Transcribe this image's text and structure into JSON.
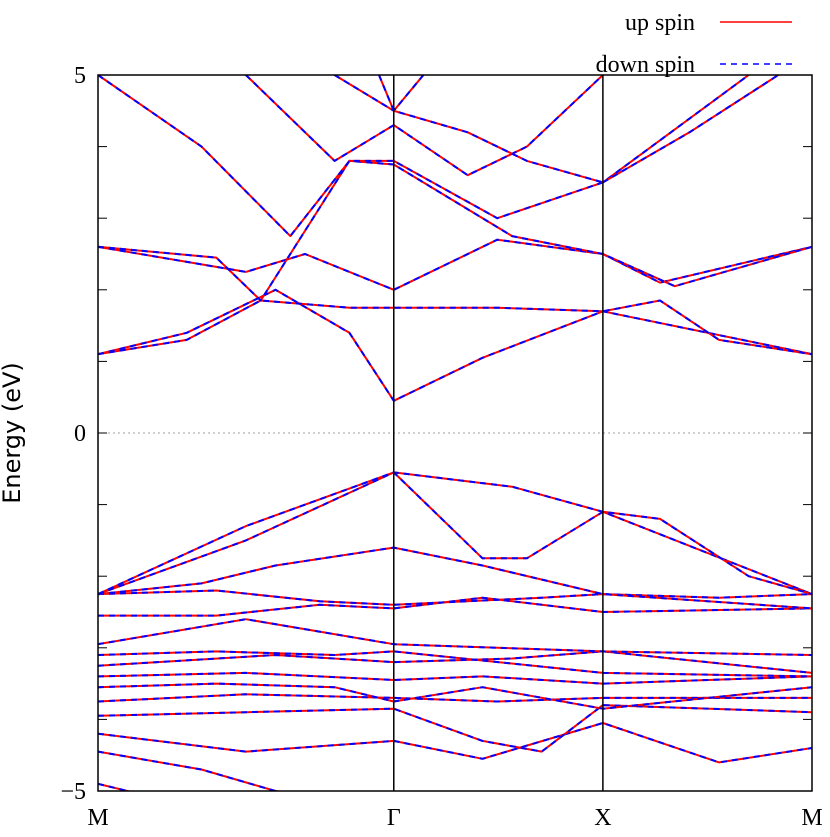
{
  "chart_data": {
    "type": "line",
    "ylabel": "Energy (eV)",
    "ylim": [
      -5,
      5
    ],
    "yticks": [
      {
        "value": -5,
        "label": "−5"
      },
      {
        "value": 0,
        "label": "0"
      },
      {
        "value": 5,
        "label": "5"
      }
    ],
    "kpoints": [
      {
        "label": "M",
        "k": 0
      },
      {
        "label": "Γ",
        "k": 1
      },
      {
        "label": "X",
        "k": 1.707
      },
      {
        "label": "M",
        "k": 2.414
      }
    ],
    "fermi_level": 0,
    "legend": {
      "position": "top-right",
      "entries": [
        {
          "name": "up spin",
          "color": "#ff0000",
          "style": "solid"
        },
        {
          "name": "down spin",
          "color": "#0000ff",
          "style": "dashed"
        }
      ]
    },
    "bands": [
      [
        [
          0.0,
          -4.9
        ],
        [
          0.2,
          -5.1
        ]
      ],
      [
        [
          0.0,
          -4.45
        ],
        [
          0.35,
          -4.7
        ],
        [
          0.6,
          -5.0
        ],
        [
          0.8,
          -5.1
        ]
      ],
      [
        [
          0.0,
          -4.2
        ],
        [
          0.5,
          -4.45
        ],
        [
          1.0,
          -4.3
        ],
        [
          1.3,
          -4.55
        ],
        [
          1.707,
          -4.05
        ],
        [
          2.1,
          -4.6
        ],
        [
          2.414,
          -4.4
        ]
      ],
      [
        [
          0.0,
          -3.95
        ],
        [
          0.5,
          -3.9
        ],
        [
          1.0,
          -3.85
        ],
        [
          1.3,
          -4.3
        ],
        [
          1.5,
          -4.45
        ],
        [
          1.707,
          -3.8
        ],
        [
          2.414,
          -3.9
        ]
      ],
      [
        [
          0.0,
          -3.75
        ],
        [
          0.5,
          -3.65
        ],
        [
          1.0,
          -3.7
        ],
        [
          1.35,
          -3.75
        ],
        [
          1.707,
          -3.7
        ],
        [
          2.414,
          -3.7
        ]
      ],
      [
        [
          0.0,
          -3.55
        ],
        [
          0.4,
          -3.5
        ],
        [
          0.8,
          -3.55
        ],
        [
          1.0,
          -3.75
        ],
        [
          1.3,
          -3.55
        ],
        [
          1.707,
          -3.85
        ],
        [
          2.414,
          -3.55
        ]
      ],
      [
        [
          0.0,
          -3.4
        ],
        [
          0.5,
          -3.35
        ],
        [
          1.0,
          -3.45
        ],
        [
          1.3,
          -3.4
        ],
        [
          1.707,
          -3.5
        ],
        [
          2.414,
          -3.4
        ]
      ],
      [
        [
          0.0,
          -3.25
        ],
        [
          0.6,
          -3.1
        ],
        [
          1.0,
          -3.2
        ],
        [
          1.4,
          -3.15
        ],
        [
          1.707,
          -3.05
        ],
        [
          2.414,
          -3.35
        ]
      ],
      [
        [
          0.0,
          -3.1
        ],
        [
          0.4,
          -3.05
        ],
        [
          0.8,
          -3.1
        ],
        [
          1.0,
          -3.05
        ],
        [
          1.707,
          -3.35
        ],
        [
          2.414,
          -3.4
        ]
      ],
      [
        [
          0.0,
          -2.95
        ],
        [
          0.5,
          -2.6
        ],
        [
          1.0,
          -2.95
        ],
        [
          1.707,
          -3.05
        ],
        [
          2.414,
          -3.1
        ]
      ],
      [
        [
          0.0,
          -2.55
        ],
        [
          0.4,
          -2.55
        ],
        [
          0.75,
          -2.4
        ],
        [
          1.0,
          -2.45
        ],
        [
          1.3,
          -2.3
        ],
        [
          1.707,
          -2.5
        ],
        [
          2.414,
          -2.45
        ]
      ],
      [
        [
          0.0,
          -2.25
        ],
        [
          0.4,
          -2.2
        ],
        [
          0.75,
          -2.35
        ],
        [
          1.0,
          -2.4
        ],
        [
          1.5,
          -2.3
        ],
        [
          1.707,
          -2.25
        ],
        [
          2.1,
          -2.3
        ],
        [
          2.414,
          -2.25
        ]
      ],
      [
        [
          0.0,
          -2.25
        ],
        [
          0.35,
          -2.1
        ],
        [
          0.6,
          -1.85
        ],
        [
          1.0,
          -1.6
        ],
        [
          1.3,
          -1.85
        ],
        [
          1.707,
          -2.25
        ],
        [
          2.414,
          -2.45
        ]
      ],
      [
        [
          0.0,
          -2.25
        ],
        [
          0.5,
          -1.5
        ],
        [
          1.0,
          -0.55
        ],
        [
          1.3,
          -1.75
        ],
        [
          1.45,
          -1.75
        ],
        [
          1.707,
          -1.1
        ],
        [
          2.414,
          -2.25
        ]
      ],
      [
        [
          0.0,
          -2.25
        ],
        [
          0.5,
          -1.3
        ],
        [
          1.0,
          -0.55
        ],
        [
          1.4,
          -0.75
        ],
        [
          1.707,
          -1.1
        ],
        [
          1.9,
          -1.2
        ],
        [
          2.2,
          -2.0
        ],
        [
          2.414,
          -2.25
        ]
      ],
      [
        [
          0.0,
          1.1
        ],
        [
          0.3,
          1.4
        ],
        [
          0.6,
          2.0
        ],
        [
          0.85,
          1.4
        ],
        [
          1.0,
          0.45
        ],
        [
          1.3,
          1.05
        ],
        [
          1.707,
          1.7
        ],
        [
          2.414,
          1.1
        ]
      ],
      [
        [
          0.0,
          1.1
        ],
        [
          0.3,
          1.3
        ],
        [
          0.55,
          1.85
        ],
        [
          0.85,
          1.75
        ],
        [
          1.0,
          1.75
        ],
        [
          1.35,
          1.75
        ],
        [
          1.707,
          1.7
        ],
        [
          1.9,
          1.85
        ],
        [
          2.1,
          1.3
        ],
        [
          2.414,
          1.1
        ]
      ],
      [
        [
          0.0,
          2.6
        ],
        [
          0.5,
          2.25
        ],
        [
          0.7,
          2.5
        ],
        [
          1.0,
          2.0
        ],
        [
          1.35,
          2.7
        ],
        [
          1.707,
          2.5
        ],
        [
          1.9,
          2.1
        ],
        [
          2.414,
          2.6
        ]
      ],
      [
        [
          0.0,
          2.6
        ],
        [
          0.4,
          2.45
        ],
        [
          0.55,
          1.85
        ],
        [
          0.65,
          2.5
        ],
        [
          0.85,
          3.8
        ],
        [
          1.0,
          3.75
        ],
        [
          1.4,
          2.75
        ],
        [
          1.707,
          2.5
        ],
        [
          1.95,
          2.05
        ],
        [
          2.414,
          2.6
        ]
      ],
      [
        [
          0.0,
          5.0
        ],
        [
          0.35,
          4.0
        ],
        [
          0.65,
          2.75
        ],
        [
          0.85,
          3.8
        ],
        [
          1.0,
          3.8
        ],
        [
          1.35,
          3.0
        ],
        [
          1.707,
          3.5
        ],
        [
          2.2,
          5.0
        ]
      ],
      [
        [
          0.5,
          5.0
        ],
        [
          0.8,
          3.8
        ],
        [
          1.0,
          4.3
        ],
        [
          1.25,
          3.6
        ],
        [
          1.45,
          4.0
        ],
        [
          1.707,
          5.0
        ]
      ],
      [
        [
          0.8,
          5.0
        ],
        [
          1.0,
          4.5
        ],
        [
          1.1,
          5.0
        ]
      ],
      [
        [
          0.95,
          5.0
        ],
        [
          1.0,
          4.5
        ],
        [
          1.25,
          4.2
        ],
        [
          1.45,
          3.8
        ],
        [
          1.707,
          3.5
        ]
      ],
      [
        [
          1.707,
          3.5
        ],
        [
          2.0,
          4.2
        ],
        [
          2.3,
          5.0
        ]
      ]
    ]
  }
}
